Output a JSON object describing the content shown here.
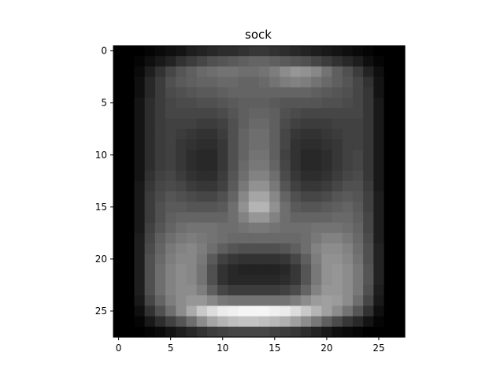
{
  "chart_data": {
    "type": "heatmap",
    "title": "sock",
    "xlabel": "",
    "ylabel": "",
    "colormap": "gray",
    "shape": [
      28,
      28
    ],
    "x_ticks": [
      "0",
      "5",
      "10",
      "15",
      "20",
      "25"
    ],
    "y_ticks": [
      "0",
      "5",
      "10",
      "15",
      "20",
      "25"
    ],
    "xlim": [
      -0.5,
      27.5
    ],
    "ylim": [
      27.5,
      -0.5
    ],
    "values": [
      [
        0,
        0,
        0,
        5,
        10,
        15,
        20,
        30,
        35,
        40,
        45,
        45,
        50,
        55,
        55,
        50,
        45,
        40,
        35,
        30,
        25,
        20,
        15,
        10,
        5,
        0,
        0,
        0
      ],
      [
        0,
        0,
        5,
        15,
        25,
        35,
        50,
        60,
        70,
        80,
        85,
        90,
        95,
        100,
        100,
        95,
        90,
        85,
        80,
        70,
        60,
        50,
        40,
        30,
        15,
        5,
        0,
        0
      ],
      [
        0,
        0,
        10,
        30,
        50,
        70,
        85,
        95,
        105,
        110,
        115,
        115,
        110,
        110,
        115,
        125,
        140,
        150,
        145,
        135,
        115,
        95,
        80,
        60,
        35,
        15,
        0,
        0
      ],
      [
        0,
        0,
        15,
        40,
        60,
        80,
        90,
        95,
        100,
        100,
        105,
        105,
        100,
        100,
        105,
        115,
        125,
        130,
        125,
        115,
        105,
        95,
        85,
        70,
        50,
        20,
        0,
        0
      ],
      [
        0,
        0,
        15,
        40,
        60,
        75,
        80,
        85,
        90,
        90,
        95,
        100,
        100,
        100,
        100,
        100,
        100,
        100,
        100,
        95,
        90,
        85,
        80,
        70,
        55,
        20,
        0,
        0
      ],
      [
        0,
        0,
        20,
        45,
        60,
        70,
        75,
        75,
        80,
        80,
        85,
        90,
        95,
        95,
        95,
        90,
        85,
        85,
        85,
        85,
        80,
        80,
        75,
        70,
        55,
        25,
        0,
        0
      ],
      [
        0,
        0,
        20,
        45,
        60,
        70,
        70,
        70,
        70,
        70,
        75,
        85,
        95,
        100,
        100,
        95,
        80,
        75,
        70,
        70,
        70,
        70,
        70,
        70,
        55,
        25,
        0,
        0
      ],
      [
        0,
        0,
        20,
        45,
        60,
        65,
        65,
        65,
        60,
        60,
        65,
        80,
        95,
        105,
        105,
        95,
        75,
        65,
        60,
        60,
        60,
        65,
        65,
        65,
        55,
        25,
        0,
        0
      ],
      [
        0,
        0,
        20,
        45,
        60,
        65,
        60,
        55,
        50,
        50,
        60,
        80,
        100,
        110,
        110,
        95,
        70,
        55,
        50,
        50,
        55,
        60,
        65,
        65,
        55,
        25,
        0,
        0
      ],
      [
        0,
        0,
        20,
        45,
        60,
        65,
        55,
        50,
        45,
        45,
        55,
        80,
        100,
        110,
        110,
        95,
        70,
        50,
        45,
        45,
        50,
        55,
        65,
        65,
        55,
        25,
        0,
        0
      ],
      [
        0,
        0,
        20,
        45,
        60,
        65,
        55,
        45,
        40,
        40,
        55,
        80,
        100,
        115,
        115,
        95,
        65,
        50,
        40,
        40,
        45,
        55,
        65,
        70,
        55,
        25,
        0,
        0
      ],
      [
        0,
        0,
        20,
        45,
        60,
        65,
        55,
        45,
        40,
        40,
        55,
        80,
        105,
        120,
        120,
        100,
        70,
        50,
        40,
        40,
        45,
        55,
        65,
        70,
        55,
        25,
        0,
        0
      ],
      [
        0,
        0,
        20,
        50,
        65,
        70,
        60,
        50,
        45,
        45,
        60,
        85,
        110,
        130,
        130,
        110,
        75,
        55,
        45,
        45,
        50,
        60,
        70,
        75,
        55,
        25,
        0,
        0
      ],
      [
        0,
        0,
        25,
        55,
        70,
        75,
        70,
        60,
        55,
        55,
        65,
        90,
        120,
        145,
        145,
        120,
        85,
        65,
        55,
        55,
        60,
        70,
        80,
        80,
        60,
        25,
        0,
        0
      ],
      [
        0,
        0,
        25,
        60,
        75,
        85,
        80,
        75,
        70,
        70,
        80,
        100,
        135,
        165,
        165,
        135,
        100,
        80,
        70,
        70,
        75,
        85,
        90,
        85,
        65,
        30,
        0,
        0
      ],
      [
        0,
        0,
        25,
        60,
        80,
        90,
        90,
        85,
        85,
        85,
        90,
        110,
        145,
        180,
        180,
        145,
        110,
        90,
        85,
        85,
        90,
        95,
        100,
        90,
        65,
        30,
        0,
        0
      ],
      [
        0,
        0,
        25,
        60,
        80,
        95,
        100,
        100,
        100,
        100,
        100,
        110,
        130,
        150,
        150,
        130,
        110,
        100,
        100,
        100,
        100,
        105,
        105,
        95,
        70,
        30,
        0,
        0
      ],
      [
        0,
        0,
        25,
        65,
        85,
        100,
        110,
        115,
        115,
        115,
        110,
        110,
        115,
        120,
        120,
        115,
        110,
        110,
        110,
        115,
        115,
        115,
        110,
        100,
        70,
        30,
        0,
        0
      ],
      [
        0,
        0,
        30,
        70,
        95,
        110,
        120,
        125,
        120,
        115,
        110,
        105,
        105,
        105,
        105,
        105,
        105,
        105,
        110,
        120,
        130,
        130,
        120,
        105,
        75,
        30,
        0,
        0
      ],
      [
        0,
        0,
        30,
        75,
        100,
        120,
        130,
        135,
        125,
        110,
        95,
        85,
        80,
        80,
        80,
        80,
        85,
        95,
        110,
        130,
        140,
        140,
        130,
        110,
        80,
        35,
        0,
        0
      ],
      [
        0,
        0,
        30,
        80,
        105,
        125,
        135,
        135,
        120,
        90,
        65,
        55,
        50,
        50,
        50,
        50,
        55,
        70,
        95,
        125,
        145,
        145,
        135,
        115,
        80,
        35,
        0,
        0
      ],
      [
        0,
        0,
        30,
        80,
        110,
        130,
        140,
        135,
        115,
        80,
        50,
        40,
        35,
        35,
        35,
        35,
        40,
        55,
        85,
        120,
        145,
        150,
        140,
        120,
        85,
        35,
        0,
        0
      ],
      [
        0,
        0,
        30,
        80,
        110,
        130,
        140,
        135,
        115,
        80,
        50,
        40,
        40,
        40,
        40,
        40,
        45,
        55,
        85,
        120,
        145,
        150,
        140,
        120,
        85,
        35,
        0,
        0
      ],
      [
        0,
        0,
        30,
        80,
        110,
        130,
        140,
        140,
        125,
        95,
        70,
        60,
        60,
        60,
        60,
        60,
        65,
        75,
        100,
        130,
        150,
        150,
        140,
        120,
        80,
        30,
        0,
        0
      ],
      [
        0,
        0,
        25,
        70,
        100,
        125,
        140,
        150,
        150,
        135,
        120,
        115,
        115,
        115,
        115,
        115,
        115,
        125,
        140,
        155,
        160,
        155,
        140,
        110,
        70,
        25,
        0,
        0
      ],
      [
        0,
        0,
        15,
        50,
        80,
        110,
        140,
        170,
        200,
        220,
        235,
        240,
        245,
        245,
        245,
        240,
        235,
        220,
        200,
        180,
        160,
        140,
        115,
        85,
        50,
        15,
        0,
        0
      ],
      [
        0,
        0,
        5,
        25,
        45,
        65,
        85,
        110,
        140,
        165,
        180,
        190,
        195,
        195,
        190,
        185,
        175,
        160,
        140,
        120,
        95,
        75,
        55,
        40,
        20,
        5,
        0,
        0
      ],
      [
        0,
        0,
        0,
        5,
        10,
        20,
        30,
        40,
        50,
        60,
        65,
        70,
        70,
        70,
        70,
        65,
        60,
        55,
        45,
        35,
        25,
        15,
        10,
        5,
        0,
        0,
        0,
        0
      ]
    ]
  }
}
